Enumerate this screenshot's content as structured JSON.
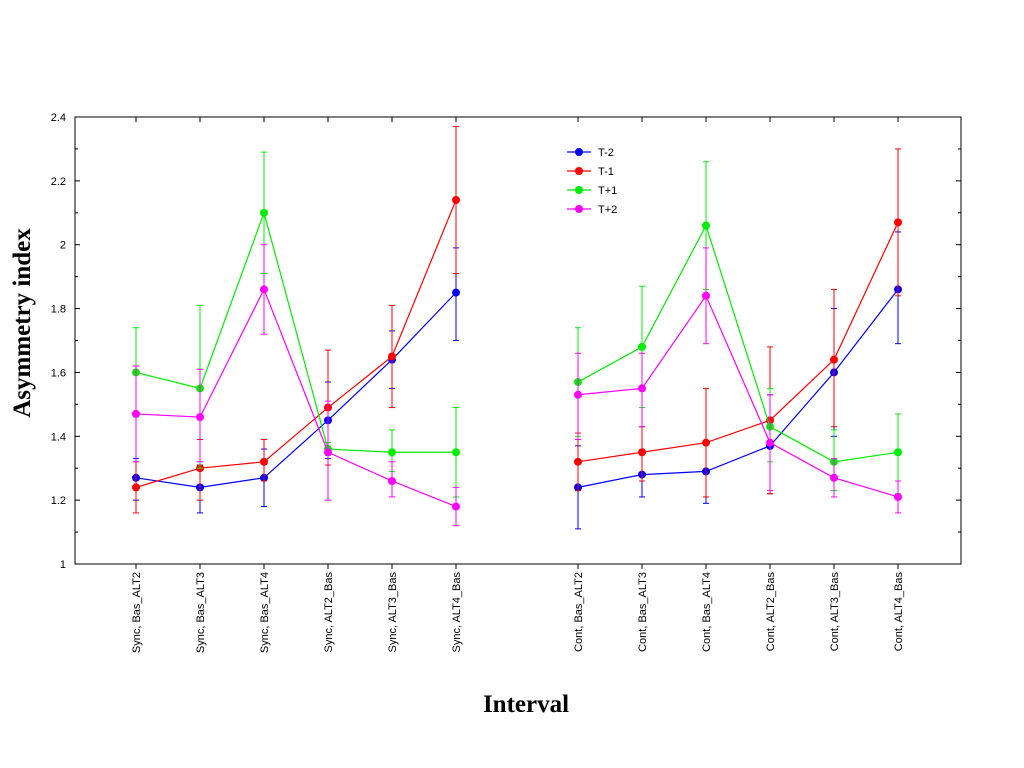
{
  "chart_data": {
    "type": "line",
    "xlabel": "Interval",
    "ylabel": "Asymmetry index",
    "ylim": [
      1,
      2.4
    ],
    "yticks": [
      "1",
      "1.2",
      "1.4",
      "1.6",
      "1.8",
      "2",
      "2.2",
      "2.4"
    ],
    "ytick_values": [
      1,
      1.2,
      1.4,
      1.6,
      1.8,
      2,
      2.2,
      2.4
    ],
    "grid": false,
    "legend_position": "top-center",
    "groups": [
      {
        "categories": [
          "Sync, Bas_ALT2",
          "Sync, Bas_ALT3",
          "Sync, Bas_ALT4",
          "Sync, ALT2_Bas",
          "Sync, ALT3_Bas",
          "Sync, ALT4_Bas"
        ]
      },
      {
        "categories": [
          "Cont, Bas_ALT2",
          "Cont, Bas_ALT3",
          "Cont, Bas_ALT4",
          "Cont, ALT2_Bas",
          "Cont, ALT3_Bas",
          "Cont, ALT4_Bas"
        ]
      }
    ],
    "series": [
      {
        "name": "T-2",
        "color": "#0000ff",
        "groups": [
          {
            "values": [
              1.27,
              1.24,
              1.27,
              1.45,
              1.64,
              1.85
            ],
            "err_low": [
              1.2,
              1.16,
              1.18,
              1.33,
              1.55,
              1.7
            ],
            "err_high": [
              1.33,
              1.31,
              1.36,
              1.57,
              1.73,
              1.99
            ]
          },
          {
            "values": [
              1.24,
              1.28,
              1.29,
              1.37,
              1.6,
              1.86
            ],
            "err_low": [
              1.11,
              1.21,
              1.19,
              1.22,
              1.4,
              1.69
            ],
            "err_high": [
              1.37,
              1.35,
              1.38,
              1.53,
              1.8,
              2.04
            ]
          }
        ]
      },
      {
        "name": "T-1",
        "color": "#ff0000",
        "groups": [
          {
            "values": [
              1.24,
              1.3,
              1.32,
              1.49,
              1.65,
              2.14
            ],
            "err_low": [
              1.16,
              1.2,
              1.26,
              1.31,
              1.49,
              1.91
            ],
            "err_high": [
              1.32,
              1.39,
              1.39,
              1.67,
              1.81,
              2.37
            ]
          },
          {
            "values": [
              1.32,
              1.35,
              1.38,
              1.45,
              1.64,
              2.07
            ],
            "err_low": [
              1.23,
              1.26,
              1.21,
              1.22,
              1.43,
              1.84
            ],
            "err_high": [
              1.41,
              1.43,
              1.55,
              1.68,
              1.86,
              2.3
            ]
          }
        ]
      },
      {
        "name": "T+1",
        "color": "#00ee00",
        "groups": [
          {
            "values": [
              1.6,
              1.55,
              2.1,
              1.36,
              1.35,
              1.35
            ],
            "err_low": [
              1.46,
              1.3,
              1.91,
              1.34,
              1.29,
              1.21
            ],
            "err_high": [
              1.74,
              1.81,
              2.29,
              1.38,
              1.42,
              1.49
            ]
          },
          {
            "values": [
              1.57,
              1.68,
              2.06,
              1.43,
              1.32,
              1.35
            ],
            "err_low": [
              1.4,
              1.49,
              1.86,
              1.32,
              1.23,
              1.22
            ],
            "err_high": [
              1.74,
              1.87,
              2.26,
              1.55,
              1.42,
              1.47
            ]
          }
        ]
      },
      {
        "name": "T+2",
        "color": "#ff00ff",
        "groups": [
          {
            "values": [
              1.47,
              1.46,
              1.86,
              1.35,
              1.26,
              1.18
            ],
            "err_low": [
              1.32,
              1.32,
              1.72,
              1.2,
              1.21,
              1.12
            ],
            "err_high": [
              1.62,
              1.61,
              2.0,
              1.51,
              1.32,
              1.24
            ]
          },
          {
            "values": [
              1.53,
              1.55,
              1.84,
              1.38,
              1.27,
              1.21
            ],
            "err_low": [
              1.39,
              1.43,
              1.69,
              1.23,
              1.21,
              1.16
            ],
            "err_high": [
              1.66,
              1.66,
              1.99,
              1.53,
              1.33,
              1.26
            ]
          }
        ]
      }
    ]
  }
}
